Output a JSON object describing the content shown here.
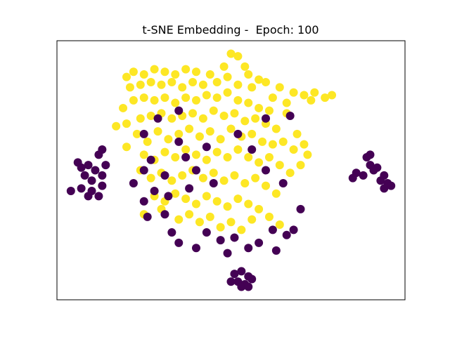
{
  "chart_data": {
    "type": "scatter",
    "title": "t-SNE Embedding -  Epoch: 100",
    "xlim": [
      0,
      100
    ],
    "ylim": [
      0,
      100
    ],
    "marker_radius": 6,
    "series": [
      {
        "color": "#fde725",
        "x": [
          20,
          22,
          25,
          28,
          31,
          34,
          37,
          40,
          44,
          48,
          50,
          52,
          54,
          55,
          58,
          21,
          24,
          27,
          30,
          33,
          36,
          39,
          42,
          46,
          49,
          52,
          56,
          60,
          64,
          68,
          71,
          74,
          77,
          79,
          73,
          66,
          62,
          19,
          22,
          25,
          28,
          31,
          34,
          37,
          40,
          43,
          46,
          49,
          52,
          55,
          58,
          61,
          20,
          24,
          27,
          30,
          33,
          36,
          39,
          42,
          45,
          48,
          51,
          54,
          57,
          60,
          63,
          66,
          69,
          17,
          23,
          26,
          29,
          32,
          35,
          38,
          41,
          44,
          47,
          50,
          53,
          56,
          59,
          62,
          65,
          68,
          71,
          72,
          20,
          25,
          28,
          31,
          34,
          37,
          40,
          43,
          46,
          49,
          52,
          55,
          58,
          61,
          64,
          67,
          70,
          24,
          27,
          30,
          33,
          36,
          39,
          42,
          45,
          48,
          51,
          54,
          57,
          60,
          63,
          28,
          31,
          34,
          37,
          40,
          43,
          46,
          49,
          52,
          55,
          58,
          61,
          64,
          35,
          38,
          41,
          44,
          47,
          50,
          53,
          56,
          30,
          25
        ],
        "values": [
          86,
          88,
          87,
          89,
          88,
          87,
          89,
          88,
          87,
          90,
          95,
          94,
          90,
          87,
          85,
          82,
          83,
          84,
          83,
          84,
          82,
          84,
          83,
          84,
          86,
          83,
          82,
          84,
          82,
          80,
          79,
          80,
          78,
          79,
          77,
          76,
          78,
          74,
          77,
          78,
          77,
          78,
          76,
          78,
          77,
          79,
          78,
          80,
          77,
          76,
          74,
          73,
          68,
          70,
          71,
          72,
          70,
          71,
          72,
          70,
          73,
          71,
          72,
          69,
          70,
          68,
          66,
          72,
          64,
          67,
          64,
          61,
          65,
          62,
          64,
          66,
          63,
          65,
          62,
          66,
          63,
          64,
          61,
          60,
          61,
          58,
          60,
          56,
          59,
          56,
          54,
          57,
          55,
          58,
          56,
          54,
          57,
          55,
          58,
          55,
          53,
          55,
          52,
          49,
          52,
          50,
          47,
          49,
          46,
          48,
          50,
          47,
          49,
          46,
          48,
          45,
          47,
          44,
          41,
          40,
          38,
          41,
          39,
          37,
          40,
          38,
          36,
          39,
          37,
          35,
          32,
          29,
          31,
          33,
          30,
          32,
          28,
          30,
          27,
          31,
          35,
          33
        ]
      },
      {
        "color": "#440154",
        "x": [
          6,
          7,
          9,
          11,
          8,
          10,
          13,
          7,
          10,
          12,
          9,
          4,
          13,
          14,
          12,
          13,
          89,
          90,
          92,
          94,
          93,
          95,
          96,
          91,
          88,
          86,
          85,
          90,
          94,
          51,
          53,
          55,
          52,
          54,
          56,
          50,
          53,
          55,
          25,
          27,
          25,
          22,
          28,
          25,
          32,
          31,
          26,
          33,
          35,
          40,
          43,
          47,
          51,
          49,
          55,
          58,
          62,
          63,
          66,
          68,
          70,
          65,
          60,
          56,
          52,
          60,
          67,
          45,
          40,
          37,
          29,
          35,
          38,
          31,
          43,
          35
        ],
        "values": [
          53,
          51,
          52,
          50,
          48,
          46,
          48,
          43,
          42,
          40,
          40,
          42,
          44,
          52,
          56,
          58,
          55,
          52,
          51,
          48,
          46,
          45,
          44,
          50,
          48,
          49,
          47,
          56,
          43,
          10,
          11,
          9,
          7,
          6,
          8,
          7,
          5,
          5,
          64,
          54,
          50,
          45,
          42,
          38,
          40,
          33,
          32,
          26,
          22,
          20,
          26,
          23,
          24,
          18,
          20,
          22,
          27,
          19,
          25,
          27,
          35,
          45,
          50,
          58,
          64,
          70,
          71,
          45,
          50,
          55,
          70,
          73,
          43,
          48,
          59,
          61
        ]
      }
    ]
  }
}
